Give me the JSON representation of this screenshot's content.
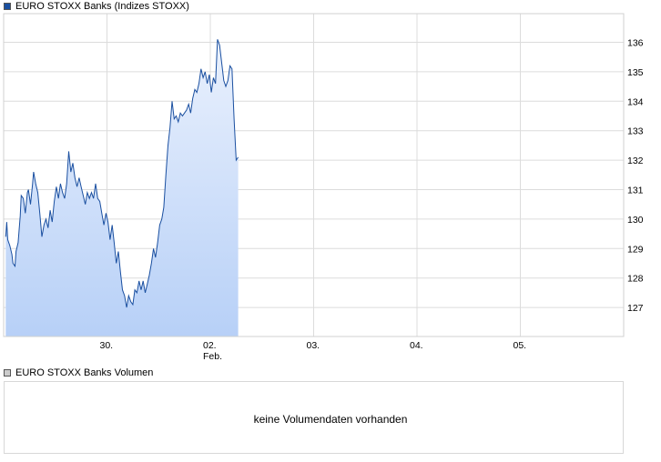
{
  "colors": {
    "line": "#1a4fa0",
    "fill_top": "#eaf1fd",
    "fill_bottom": "#b7d0f7",
    "grid": "#dcdcdc",
    "swatch_price": "#1a4fa0",
    "swatch_volume": "#cccccc"
  },
  "legend": {
    "price": "EURO STOXX Banks (Indizes STOXX)",
    "volume": "EURO STOXX Banks Volumen"
  },
  "volume": {
    "message": "keine Volumendaten vorhanden"
  },
  "chart_data": {
    "type": "area",
    "title": "",
    "xlabel": "",
    "ylabel": "",
    "ylim": [
      126.0,
      137.0
    ],
    "y_ticks": [
      127,
      128,
      129,
      130,
      131,
      132,
      133,
      134,
      135,
      136
    ],
    "y_axis_position": "right",
    "grid": true,
    "legend_placement": "top-left",
    "x_ticks": [
      {
        "day": 0,
        "label": "30."
      },
      {
        "day": 1,
        "label": "02.",
        "sublabel": "Feb."
      },
      {
        "day": 2,
        "label": "03."
      },
      {
        "day": 3,
        "label": "04."
      },
      {
        "day": 4,
        "label": "05."
      }
    ],
    "x_range_days": [
      -0.98,
      1.27
    ],
    "series": [
      {
        "values": [
          [
            -0.98,
            129.4
          ],
          [
            -0.97,
            129.9
          ],
          [
            -0.96,
            129.3
          ],
          [
            -0.94,
            129.1
          ],
          [
            -0.92,
            128.8
          ],
          [
            -0.91,
            128.5
          ],
          [
            -0.89,
            128.4
          ],
          [
            -0.88,
            128.9
          ],
          [
            -0.86,
            129.2
          ],
          [
            -0.84,
            130.1
          ],
          [
            -0.83,
            130.8
          ],
          [
            -0.81,
            130.7
          ],
          [
            -0.79,
            130.2
          ],
          [
            -0.77,
            130.9
          ],
          [
            -0.76,
            131.0
          ],
          [
            -0.74,
            130.5
          ],
          [
            -0.72,
            131.2
          ],
          [
            -0.71,
            131.6
          ],
          [
            -0.69,
            131.2
          ],
          [
            -0.67,
            130.9
          ],
          [
            -0.65,
            130.2
          ],
          [
            -0.63,
            129.4
          ],
          [
            -0.61,
            129.8
          ],
          [
            -0.59,
            130.0
          ],
          [
            -0.57,
            129.7
          ],
          [
            -0.55,
            130.3
          ],
          [
            -0.53,
            129.9
          ],
          [
            -0.51,
            130.6
          ],
          [
            -0.49,
            131.1
          ],
          [
            -0.47,
            130.7
          ],
          [
            -0.45,
            131.2
          ],
          [
            -0.43,
            130.9
          ],
          [
            -0.41,
            130.7
          ],
          [
            -0.39,
            131.2
          ],
          [
            -0.37,
            132.3
          ],
          [
            -0.35,
            131.6
          ],
          [
            -0.33,
            131.9
          ],
          [
            -0.31,
            131.4
          ],
          [
            -0.29,
            131.1
          ],
          [
            -0.27,
            131.4
          ],
          [
            -0.25,
            131.1
          ],
          [
            -0.23,
            130.8
          ],
          [
            -0.21,
            130.5
          ],
          [
            -0.19,
            130.9
          ],
          [
            -0.17,
            130.7
          ],
          [
            -0.15,
            130.9
          ],
          [
            -0.13,
            130.7
          ],
          [
            -0.11,
            131.2
          ],
          [
            -0.09,
            130.7
          ],
          [
            -0.07,
            130.6
          ],
          [
            -0.05,
            130.2
          ],
          [
            -0.03,
            129.8
          ],
          [
            -0.01,
            130.2
          ],
          [
            0.01,
            129.9
          ],
          [
            0.03,
            129.3
          ],
          [
            0.05,
            129.8
          ],
          [
            0.07,
            129.2
          ],
          [
            0.09,
            128.5
          ],
          [
            0.11,
            128.9
          ],
          [
            0.13,
            128.2
          ],
          [
            0.15,
            127.6
          ],
          [
            0.17,
            127.4
          ],
          [
            0.19,
            127.0
          ],
          [
            0.21,
            127.4
          ],
          [
            0.23,
            127.2
          ],
          [
            0.25,
            127.1
          ],
          [
            0.27,
            127.6
          ],
          [
            0.29,
            127.5
          ],
          [
            0.31,
            127.9
          ],
          [
            0.33,
            127.6
          ],
          [
            0.35,
            127.9
          ],
          [
            0.37,
            127.5
          ],
          [
            0.39,
            127.8
          ],
          [
            0.41,
            128.1
          ],
          [
            0.43,
            128.5
          ],
          [
            0.45,
            129.0
          ],
          [
            0.47,
            128.7
          ],
          [
            0.49,
            129.2
          ],
          [
            0.51,
            129.8
          ],
          [
            0.53,
            130.0
          ],
          [
            0.55,
            130.4
          ],
          [
            0.57,
            131.5
          ],
          [
            0.59,
            132.5
          ],
          [
            0.61,
            133.1
          ],
          [
            0.63,
            134.0
          ],
          [
            0.65,
            133.4
          ],
          [
            0.67,
            133.5
          ],
          [
            0.69,
            133.3
          ],
          [
            0.71,
            133.6
          ],
          [
            0.73,
            133.5
          ],
          [
            0.75,
            133.6
          ],
          [
            0.77,
            133.7
          ],
          [
            0.79,
            133.9
          ],
          [
            0.81,
            133.6
          ],
          [
            0.83,
            134.1
          ],
          [
            0.85,
            134.4
          ],
          [
            0.87,
            134.3
          ],
          [
            0.89,
            134.6
          ],
          [
            0.91,
            135.1
          ],
          [
            0.93,
            134.8
          ],
          [
            0.95,
            135.0
          ],
          [
            0.97,
            134.6
          ],
          [
            0.99,
            134.9
          ],
          [
            1.01,
            134.3
          ],
          [
            1.03,
            134.8
          ],
          [
            1.05,
            134.6
          ],
          [
            1.07,
            136.1
          ],
          [
            1.09,
            135.9
          ],
          [
            1.11,
            135.3
          ],
          [
            1.13,
            134.7
          ],
          [
            1.15,
            134.5
          ],
          [
            1.17,
            134.7
          ],
          [
            1.19,
            135.2
          ],
          [
            1.21,
            135.1
          ],
          [
            1.23,
            133.4
          ],
          [
            1.25,
            132.0
          ],
          [
            1.27,
            132.1
          ]
        ]
      }
    ]
  }
}
